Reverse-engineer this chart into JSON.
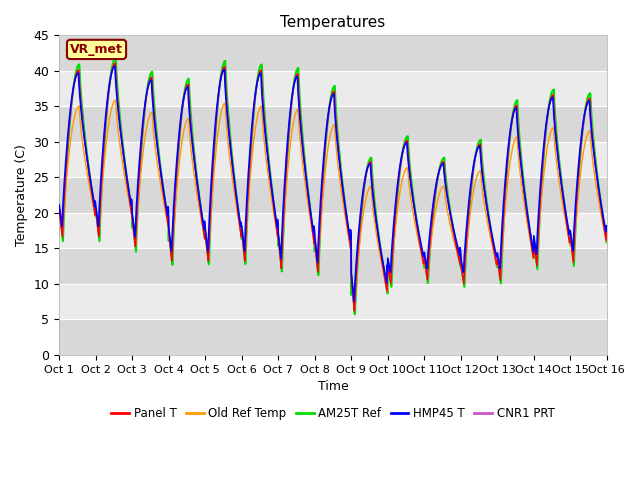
{
  "title": "Temperatures",
  "xlabel": "Time",
  "ylabel": "Temperature (C)",
  "ylim": [
    0,
    45
  ],
  "xlim": [
    0,
    15
  ],
  "xtick_labels": [
    "Oct 1",
    "Oct 2",
    "Oct 3",
    "Oct 4",
    "Oct 5",
    "Oct 6",
    "Oct 7",
    "Oct 8",
    "Oct 9",
    "Oct 10",
    "Oct 11",
    "Oct 12",
    "Oct 13",
    "Oct 14",
    "Oct 15",
    "Oct 16"
  ],
  "ytick_values": [
    0,
    5,
    10,
    15,
    20,
    25,
    30,
    35,
    40,
    45
  ],
  "line_colors": [
    "#ff0000",
    "#ff9900",
    "#00dd00",
    "#0000ff",
    "#cc55cc"
  ],
  "line_labels": [
    "Panel T",
    "Old Ref Temp",
    "AM25T Ref",
    "HMP45 T",
    "CNR1 PRT"
  ],
  "line_widths": [
    1.0,
    1.0,
    1.5,
    1.2,
    1.0
  ],
  "annotation_text": "VR_met",
  "annotation_bg": "#ffff99",
  "annotation_border": "#880000",
  "bg_band_color": "#d8d8d8",
  "plot_bg": "#ebebeb",
  "n_days": 15,
  "pts_per_day": 144
}
